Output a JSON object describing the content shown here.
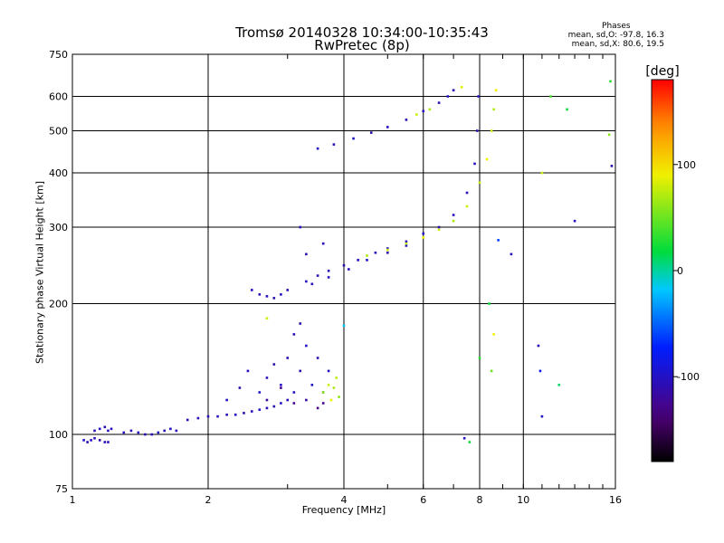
{
  "title_line1": "Tromsø 20140328 10:34:00-10:35:43",
  "title_line2": "RwPretec (8p)",
  "phases": {
    "title": "Phases",
    "line_o": "mean, sd,O: -97.8, 16.3",
    "line_x": "mean, sd,X:  80.6, 19.5"
  },
  "colorbar": {
    "unit": "[deg]",
    "ticks": [
      {
        "value": 100,
        "label": "100"
      },
      {
        "value": 0,
        "label": "0"
      },
      {
        "value": -100,
        "label": "-100"
      }
    ],
    "range": [
      -180,
      180
    ]
  },
  "chart_data": {
    "type": "scatter",
    "xlabel": "Frequency [MHz]",
    "ylabel": "Stationary phase Virtual Height [km]",
    "xscale": "log",
    "yscale": "log",
    "xlim": [
      1,
      16
    ],
    "ylim": [
      75,
      750
    ],
    "grid": true,
    "xticks": [
      1,
      2,
      4,
      6,
      8,
      10,
      16
    ],
    "yticks": [
      75,
      100,
      200,
      300,
      400,
      500,
      600,
      750
    ],
    "series": [
      {
        "points": [
          [
            1.06,
            97,
            -100
          ],
          [
            1.08,
            96,
            -110
          ],
          [
            1.1,
            97,
            -105
          ],
          [
            1.12,
            98,
            -100
          ],
          [
            1.15,
            97,
            -110
          ],
          [
            1.18,
            96,
            -105
          ],
          [
            1.2,
            96,
            -100
          ],
          [
            1.12,
            102,
            -105
          ],
          [
            1.15,
            103,
            -100
          ],
          [
            1.18,
            104,
            -110
          ],
          [
            1.2,
            102,
            -100
          ],
          [
            1.22,
            103,
            -105
          ],
          [
            1.3,
            101,
            -100
          ],
          [
            1.35,
            102,
            -105
          ],
          [
            1.4,
            101,
            -100
          ],
          [
            1.45,
            100,
            -110
          ],
          [
            1.5,
            100,
            -105
          ],
          [
            1.55,
            101,
            -100
          ],
          [
            1.6,
            102,
            -110
          ],
          [
            1.65,
            103,
            -100
          ],
          [
            1.7,
            102,
            -105
          ],
          [
            1.8,
            108,
            -100
          ],
          [
            1.9,
            109,
            -110
          ],
          [
            2.0,
            110,
            -105
          ],
          [
            2.1,
            110,
            -100
          ],
          [
            2.2,
            111,
            -105
          ],
          [
            2.3,
            111,
            -100
          ],
          [
            2.4,
            112,
            -110
          ],
          [
            2.5,
            113,
            -105
          ],
          [
            2.6,
            114,
            -100
          ],
          [
            2.7,
            115,
            -105
          ],
          [
            2.8,
            116,
            -110
          ],
          [
            2.9,
            118,
            -100
          ],
          [
            3.0,
            120,
            -105
          ],
          [
            2.2,
            120,
            -100
          ],
          [
            2.35,
            128,
            -110
          ],
          [
            2.45,
            140,
            -105
          ],
          [
            2.6,
            125,
            -100
          ],
          [
            2.7,
            135,
            -105
          ],
          [
            2.8,
            145,
            -110
          ],
          [
            2.9,
            130,
            -100
          ],
          [
            3.0,
            150,
            -105
          ],
          [
            3.1,
            125,
            -100
          ],
          [
            3.2,
            140,
            -110
          ],
          [
            3.3,
            160,
            -100
          ],
          [
            3.1,
            170,
            -105
          ],
          [
            3.2,
            180,
            -110
          ],
          [
            3.4,
            130,
            -100
          ],
          [
            3.5,
            150,
            -105
          ],
          [
            3.6,
            125,
            -110
          ],
          [
            3.7,
            140,
            -100
          ],
          [
            2.7,
            120,
            -120
          ],
          [
            2.9,
            128,
            -130
          ],
          [
            3.1,
            118,
            -125
          ],
          [
            3.3,
            120,
            -120
          ],
          [
            3.5,
            115,
            -130
          ],
          [
            3.6,
            118,
            -125
          ],
          [
            3.6,
            125,
            60
          ],
          [
            3.7,
            130,
            80
          ],
          [
            3.8,
            128,
            70
          ],
          [
            3.9,
            122,
            60
          ],
          [
            3.75,
            120,
            90
          ],
          [
            3.85,
            135,
            75
          ],
          [
            2.5,
            215,
            -100
          ],
          [
            2.6,
            210,
            -105
          ],
          [
            2.7,
            208,
            -100
          ],
          [
            2.8,
            206,
            -110
          ],
          [
            2.9,
            210,
            -100
          ],
          [
            3.0,
            215,
            -105
          ],
          [
            3.3,
            225,
            -100
          ],
          [
            3.5,
            232,
            -105
          ],
          [
            3.7,
            238,
            -100
          ],
          [
            4.0,
            245,
            -110
          ],
          [
            4.3,
            252,
            -100
          ],
          [
            4.7,
            262,
            -105
          ],
          [
            5.0,
            268,
            -100
          ],
          [
            5.5,
            278,
            -105
          ],
          [
            6.0,
            290,
            -100
          ],
          [
            6.5,
            300,
            -110
          ],
          [
            7.0,
            320,
            -100
          ],
          [
            7.5,
            360,
            -105
          ],
          [
            7.8,
            420,
            -100
          ],
          [
            7.9,
            500,
            -110
          ],
          [
            7.95,
            600,
            -100
          ],
          [
            3.4,
            222,
            -105
          ],
          [
            3.7,
            230,
            -100
          ],
          [
            4.1,
            240,
            -105
          ],
          [
            4.5,
            252,
            -100
          ],
          [
            5.0,
            262,
            -110
          ],
          [
            5.5,
            272,
            -100
          ],
          [
            4.5,
            258,
            70
          ],
          [
            5.0,
            266,
            80
          ],
          [
            5.5,
            275,
            75
          ],
          [
            6.0,
            284,
            90
          ],
          [
            6.5,
            296,
            80
          ],
          [
            7.0,
            310,
            70
          ],
          [
            7.5,
            335,
            80
          ],
          [
            8.0,
            380,
            75
          ],
          [
            8.3,
            430,
            90
          ],
          [
            8.5,
            500,
            80
          ],
          [
            8.6,
            560,
            70
          ],
          [
            8.7,
            620,
            90
          ],
          [
            3.5,
            455,
            -100
          ],
          [
            3.8,
            465,
            -105
          ],
          [
            4.2,
            480,
            -100
          ],
          [
            4.6,
            495,
            -110
          ],
          [
            5.0,
            510,
            -100
          ],
          [
            5.5,
            530,
            -105
          ],
          [
            6.0,
            555,
            -100
          ],
          [
            6.5,
            580,
            -110
          ],
          [
            6.8,
            600,
            -100
          ],
          [
            7.0,
            620,
            -105
          ],
          [
            5.8,
            545,
            80
          ],
          [
            6.2,
            560,
            70
          ],
          [
            7.3,
            630,
            85
          ],
          [
            3.2,
            300,
            -100
          ],
          [
            3.6,
            275,
            -105
          ],
          [
            3.3,
            260,
            -110
          ],
          [
            8.0,
            150,
            30
          ],
          [
            8.4,
            200,
            20
          ],
          [
            8.8,
            280,
            -60
          ],
          [
            9.4,
            260,
            -100
          ],
          [
            11.0,
            400,
            80
          ],
          [
            11.5,
            600,
            40
          ],
          [
            12.5,
            560,
            20
          ],
          [
            13.0,
            310,
            -100
          ],
          [
            15.5,
            490,
            60
          ],
          [
            15.7,
            415,
            -110
          ],
          [
            15.6,
            650,
            30
          ],
          [
            10.8,
            160,
            -110
          ],
          [
            11.0,
            110,
            -100
          ],
          [
            12.0,
            130,
            10
          ],
          [
            10.9,
            140,
            -80
          ],
          [
            8.5,
            140,
            50
          ],
          [
            8.6,
            170,
            90
          ],
          [
            7.4,
            98,
            -100
          ],
          [
            7.6,
            96,
            20
          ],
          [
            4.0,
            178,
            -20
          ],
          [
            2.7,
            185,
            80
          ]
        ]
      }
    ]
  }
}
